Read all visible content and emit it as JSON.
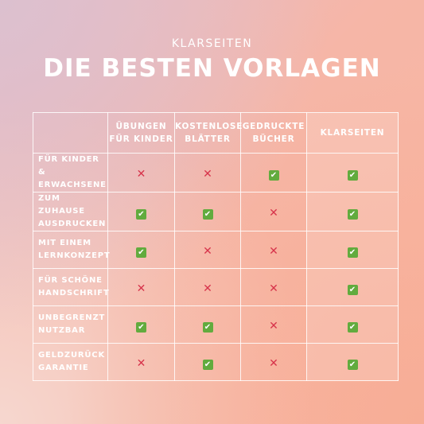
{
  "brand": "KLARSEITEN",
  "headline": "DIE BESTEN VORLAGEN",
  "columns": [
    {
      "line1": "ÜBUNGEN",
      "line2": "FÜR KINDER"
    },
    {
      "line1": "KOSTENLOSE",
      "line2": "BLÄTTER"
    },
    {
      "line1": "GEDRUCKTE",
      "line2": "BÜCHER"
    },
    {
      "line1": "KLARSEITEN",
      "line2": ""
    }
  ],
  "rows": [
    {
      "line1": "FÜR KINDER &",
      "line2": "ERWACHSENE",
      "values": [
        "no",
        "no",
        "yes",
        "yes"
      ]
    },
    {
      "line1": "ZUM ZUHAUSE",
      "line2": "AUSDRUCKEN",
      "values": [
        "yes",
        "yes",
        "no",
        "yes"
      ]
    },
    {
      "line1": "MIT EINEM",
      "line2": "LERNKONZEPT",
      "values": [
        "yes",
        "no",
        "no",
        "yes"
      ]
    },
    {
      "line1": "FÜR SCHÖNE",
      "line2": "HANDSCHRIFT",
      "values": [
        "no",
        "no",
        "no",
        "yes"
      ]
    },
    {
      "line1": "UNBEGRENZT",
      "line2": "NUTZBAR",
      "values": [
        "yes",
        "yes",
        "no",
        "yes"
      ]
    },
    {
      "line1": "GELDZURÜCK",
      "line2": "GARANTIE",
      "values": [
        "no",
        "yes",
        "no",
        "yes"
      ]
    }
  ],
  "icons": {
    "yes": "check-mark-icon",
    "no": "cross-mark-icon"
  },
  "colors": {
    "check": "#62ab3e",
    "cross": "#d7344b"
  }
}
